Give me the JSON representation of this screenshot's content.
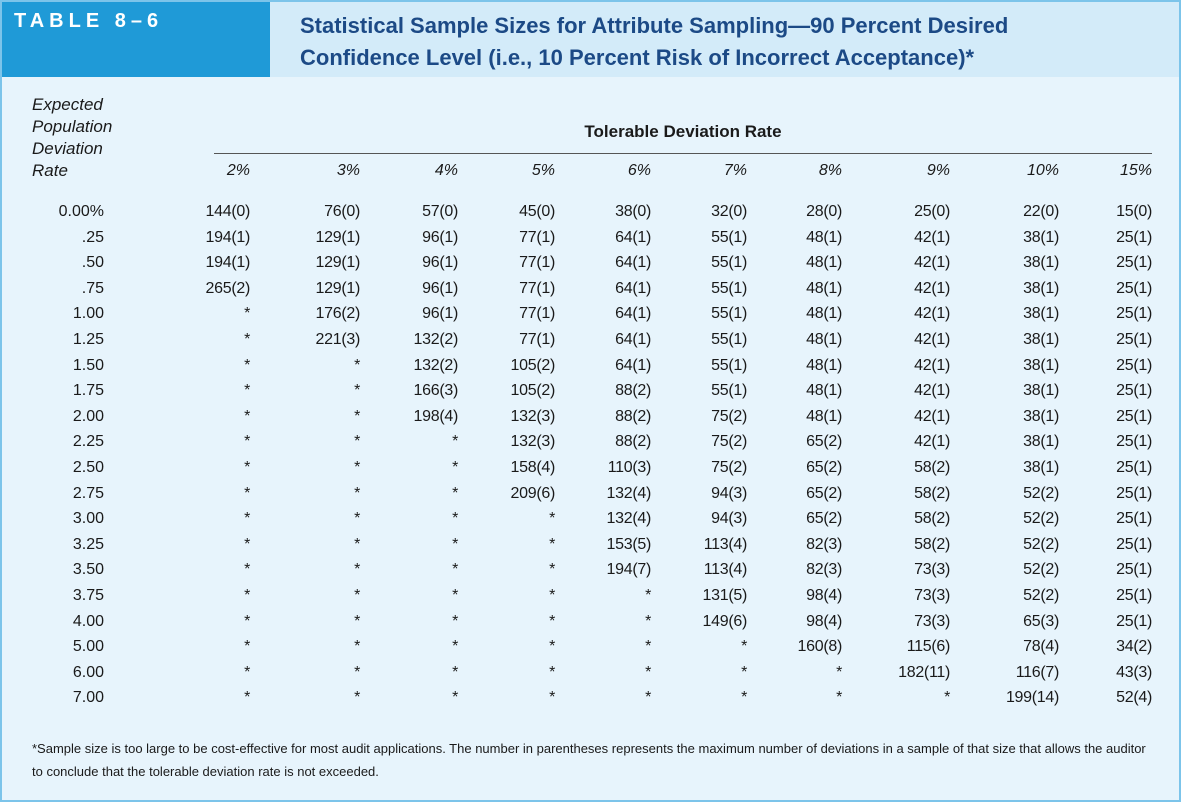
{
  "header": {
    "label": "TABLE 8–6",
    "title": "Statistical Sample Sizes for Attribute Sampling—90 Percent Desired Confidence Level (i.e., 10 Percent Risk of Incorrect Acceptance)*"
  },
  "table": {
    "row_header": "Expected Population Deviation Rate",
    "group_header": "Tolerable Deviation Rate",
    "columns": [
      "2%",
      "3%",
      "4%",
      "5%",
      "6%",
      "7%",
      "8%",
      "9%",
      "10%",
      "15%"
    ],
    "rows": [
      [
        "0.00%",
        "144(0)",
        "76(0)",
        "57(0)",
        "45(0)",
        "38(0)",
        "32(0)",
        "28(0)",
        "25(0)",
        "22(0)",
        "15(0)"
      ],
      [
        ".25",
        "194(1)",
        "129(1)",
        "96(1)",
        "77(1)",
        "64(1)",
        "55(1)",
        "48(1)",
        "42(1)",
        "38(1)",
        "25(1)"
      ],
      [
        ".50",
        "194(1)",
        "129(1)",
        "96(1)",
        "77(1)",
        "64(1)",
        "55(1)",
        "48(1)",
        "42(1)",
        "38(1)",
        "25(1)"
      ],
      [
        ".75",
        "265(2)",
        "129(1)",
        "96(1)",
        "77(1)",
        "64(1)",
        "55(1)",
        "48(1)",
        "42(1)",
        "38(1)",
        "25(1)"
      ],
      [
        "1.00",
        "*",
        "176(2)",
        "96(1)",
        "77(1)",
        "64(1)",
        "55(1)",
        "48(1)",
        "42(1)",
        "38(1)",
        "25(1)"
      ],
      [
        "1.25",
        "*",
        "221(3)",
        "132(2)",
        "77(1)",
        "64(1)",
        "55(1)",
        "48(1)",
        "42(1)",
        "38(1)",
        "25(1)"
      ],
      [
        "1.50",
        "*",
        "*",
        "132(2)",
        "105(2)",
        "64(1)",
        "55(1)",
        "48(1)",
        "42(1)",
        "38(1)",
        "25(1)"
      ],
      [
        "1.75",
        "*",
        "*",
        "166(3)",
        "105(2)",
        "88(2)",
        "55(1)",
        "48(1)",
        "42(1)",
        "38(1)",
        "25(1)"
      ],
      [
        "2.00",
        "*",
        "*",
        "198(4)",
        "132(3)",
        "88(2)",
        "75(2)",
        "48(1)",
        "42(1)",
        "38(1)",
        "25(1)"
      ],
      [
        "2.25",
        "*",
        "*",
        "*",
        "132(3)",
        "88(2)",
        "75(2)",
        "65(2)",
        "42(1)",
        "38(1)",
        "25(1)"
      ],
      [
        "2.50",
        "*",
        "*",
        "*",
        "158(4)",
        "110(3)",
        "75(2)",
        "65(2)",
        "58(2)",
        "38(1)",
        "25(1)"
      ],
      [
        "2.75",
        "*",
        "*",
        "*",
        "209(6)",
        "132(4)",
        "94(3)",
        "65(2)",
        "58(2)",
        "52(2)",
        "25(1)"
      ],
      [
        "3.00",
        "*",
        "*",
        "*",
        "*",
        "132(4)",
        "94(3)",
        "65(2)",
        "58(2)",
        "52(2)",
        "25(1)"
      ],
      [
        "3.25",
        "*",
        "*",
        "*",
        "*",
        "153(5)",
        "113(4)",
        "82(3)",
        "58(2)",
        "52(2)",
        "25(1)"
      ],
      [
        "3.50",
        "*",
        "*",
        "*",
        "*",
        "194(7)",
        "113(4)",
        "82(3)",
        "73(3)",
        "52(2)",
        "25(1)"
      ],
      [
        "3.75",
        "*",
        "*",
        "*",
        "*",
        "*",
        "131(5)",
        "98(4)",
        "73(3)",
        "52(2)",
        "25(1)"
      ],
      [
        "4.00",
        "*",
        "*",
        "*",
        "*",
        "*",
        "149(6)",
        "98(4)",
        "73(3)",
        "65(3)",
        "25(1)"
      ],
      [
        "5.00",
        "*",
        "*",
        "*",
        "*",
        "*",
        "*",
        "160(8)",
        "115(6)",
        "78(4)",
        "34(2)"
      ],
      [
        "6.00",
        "*",
        "*",
        "*",
        "*",
        "*",
        "*",
        "*",
        "182(11)",
        "116(7)",
        "43(3)"
      ],
      [
        "7.00",
        "*",
        "*",
        "*",
        "*",
        "*",
        "*",
        "*",
        "*",
        "199(14)",
        "52(4)"
      ]
    ]
  },
  "footnote": "*Sample size is too large to be cost-effective for most audit applications. The number in parentheses represents the maximum number of deviations in a sample of that size that allows the auditor to conclude that the tolerable deviation rate is not exceeded."
}
